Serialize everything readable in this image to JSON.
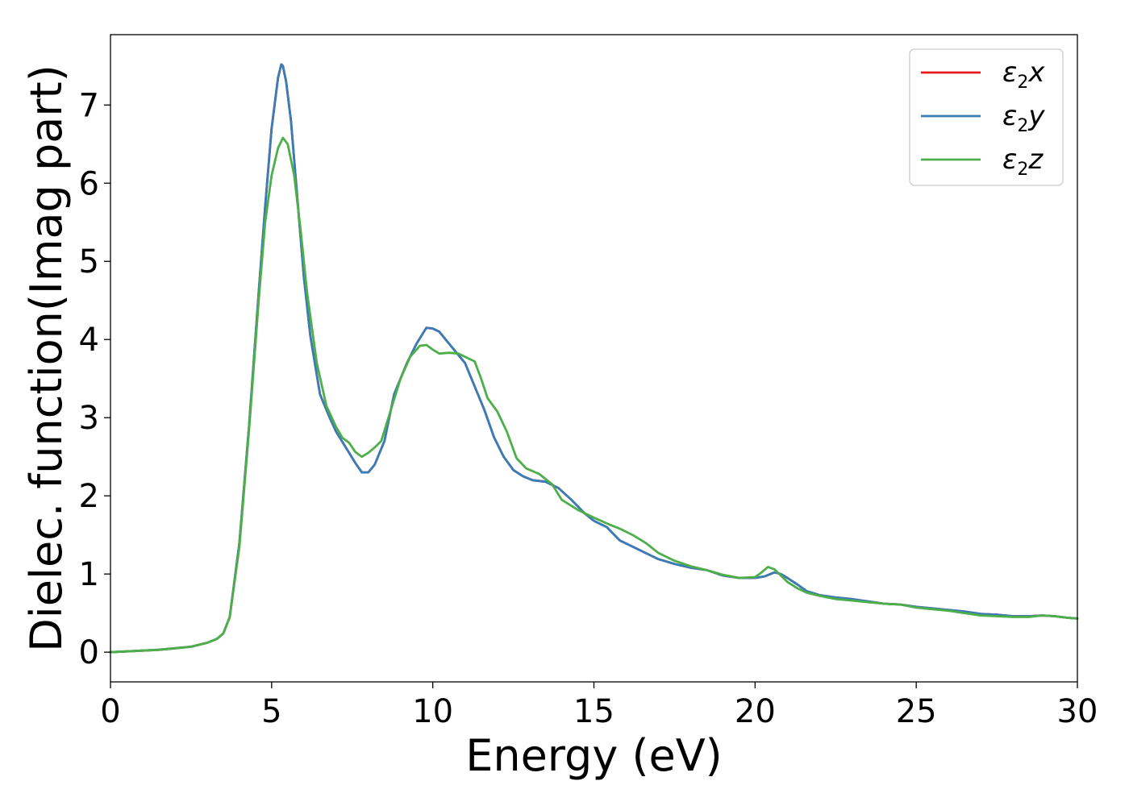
{
  "chart_data": {
    "type": "line",
    "xlabel": "Energy (eV)",
    "ylabel": "Dielec. function(Imag part)",
    "xlim": [
      0,
      30
    ],
    "ylim": [
      -0.38,
      7.9
    ],
    "xticks": [
      "0",
      "5",
      "10",
      "15",
      "20",
      "25",
      "30"
    ],
    "yticks": [
      "0",
      "1",
      "2",
      "3",
      "4",
      "5",
      "6",
      "7"
    ],
    "grid": false,
    "legend_position": "top-right",
    "series": [
      {
        "name": "ε2x",
        "legend": {
          "base": "ε",
          "sub": "2",
          "suffix": "x"
        },
        "color": "#e41a1c",
        "x": [
          0,
          0.5,
          1,
          1.5,
          2,
          2.5,
          3,
          3.3,
          3.5,
          3.7,
          4,
          4.3,
          4.6,
          4.8,
          5.0,
          5.2,
          5.3,
          5.35,
          5.45,
          5.6,
          5.8,
          6.0,
          6.2,
          6.5,
          6.8,
          7.0,
          7.3,
          7.6,
          7.8,
          8.0,
          8.2,
          8.5,
          8.8,
          9.2,
          9.5,
          9.8,
          10.0,
          10.2,
          10.5,
          10.8,
          11.0,
          11.3,
          11.6,
          11.9,
          12.2,
          12.5,
          12.8,
          13.1,
          13.5,
          13.9,
          14.3,
          14.7,
          15.0,
          15.4,
          15.8,
          16.2,
          16.6,
          17.0,
          17.5,
          18.0,
          18.5,
          19.0,
          19.5,
          20.0,
          20.3,
          20.6,
          20.8,
          21.0,
          21.3,
          21.6,
          22.0,
          22.5,
          23.0,
          23.5,
          24.0,
          24.5,
          25.0,
          25.5,
          26.0,
          26.5,
          27.0,
          27.5,
          28.0,
          28.5,
          28.9,
          29.3,
          29.7,
          30.0
        ],
        "y": [
          0.0,
          0.01,
          0.02,
          0.03,
          0.05,
          0.07,
          0.12,
          0.17,
          0.24,
          0.45,
          1.4,
          2.9,
          4.6,
          5.7,
          6.7,
          7.35,
          7.52,
          7.5,
          7.3,
          6.8,
          5.8,
          4.8,
          4.05,
          3.3,
          3.0,
          2.82,
          2.62,
          2.42,
          2.3,
          2.3,
          2.4,
          2.7,
          3.3,
          3.7,
          3.95,
          4.15,
          4.14,
          4.1,
          3.95,
          3.8,
          3.7,
          3.4,
          3.1,
          2.75,
          2.5,
          2.33,
          2.25,
          2.2,
          2.18,
          2.1,
          1.95,
          1.78,
          1.68,
          1.6,
          1.43,
          1.35,
          1.27,
          1.19,
          1.13,
          1.08,
          1.05,
          0.98,
          0.95,
          0.95,
          0.97,
          1.02,
          1.0,
          0.95,
          0.87,
          0.78,
          0.73,
          0.7,
          0.68,
          0.65,
          0.62,
          0.61,
          0.58,
          0.56,
          0.54,
          0.52,
          0.49,
          0.48,
          0.46,
          0.46,
          0.47,
          0.46,
          0.44,
          0.43
        ]
      },
      {
        "name": "ε2y",
        "legend": {
          "base": "ε",
          "sub": "2",
          "suffix": "y"
        },
        "color": "#377eb8",
        "x": [
          0,
          0.5,
          1,
          1.5,
          2,
          2.5,
          3,
          3.3,
          3.5,
          3.7,
          4,
          4.3,
          4.6,
          4.8,
          5.0,
          5.2,
          5.3,
          5.35,
          5.45,
          5.6,
          5.8,
          6.0,
          6.2,
          6.5,
          6.8,
          7.0,
          7.3,
          7.6,
          7.8,
          8.0,
          8.2,
          8.5,
          8.8,
          9.2,
          9.5,
          9.8,
          10.0,
          10.2,
          10.5,
          10.8,
          11.0,
          11.3,
          11.6,
          11.9,
          12.2,
          12.5,
          12.8,
          13.1,
          13.5,
          13.9,
          14.3,
          14.7,
          15.0,
          15.4,
          15.8,
          16.2,
          16.6,
          17.0,
          17.5,
          18.0,
          18.5,
          19.0,
          19.5,
          20.0,
          20.3,
          20.6,
          20.8,
          21.0,
          21.3,
          21.6,
          22.0,
          22.5,
          23.0,
          23.5,
          24.0,
          24.5,
          25.0,
          25.5,
          26.0,
          26.5,
          27.0,
          27.5,
          28.0,
          28.5,
          28.9,
          29.3,
          29.7,
          30.0
        ],
        "y": [
          0.0,
          0.01,
          0.02,
          0.03,
          0.05,
          0.07,
          0.12,
          0.17,
          0.24,
          0.45,
          1.4,
          2.9,
          4.6,
          5.7,
          6.7,
          7.35,
          7.52,
          7.5,
          7.3,
          6.8,
          5.8,
          4.8,
          4.05,
          3.3,
          3.0,
          2.82,
          2.62,
          2.42,
          2.3,
          2.3,
          2.4,
          2.7,
          3.3,
          3.7,
          3.95,
          4.15,
          4.14,
          4.1,
          3.95,
          3.8,
          3.7,
          3.4,
          3.1,
          2.75,
          2.5,
          2.33,
          2.25,
          2.2,
          2.18,
          2.1,
          1.95,
          1.78,
          1.68,
          1.6,
          1.43,
          1.35,
          1.27,
          1.19,
          1.13,
          1.08,
          1.05,
          0.98,
          0.95,
          0.95,
          0.97,
          1.02,
          1.0,
          0.95,
          0.87,
          0.78,
          0.73,
          0.7,
          0.68,
          0.65,
          0.62,
          0.61,
          0.58,
          0.56,
          0.54,
          0.52,
          0.49,
          0.48,
          0.46,
          0.46,
          0.47,
          0.46,
          0.44,
          0.43
        ]
      },
      {
        "name": "ε2z",
        "legend": {
          "base": "ε",
          "sub": "2",
          "suffix": "z"
        },
        "color": "#4daf4a",
        "x": [
          0,
          0.5,
          1,
          1.5,
          2,
          2.5,
          3,
          3.3,
          3.5,
          3.7,
          4,
          4.3,
          4.6,
          4.8,
          5.0,
          5.2,
          5.35,
          5.5,
          5.7,
          5.9,
          6.1,
          6.4,
          6.7,
          7.0,
          7.2,
          7.4,
          7.6,
          7.8,
          8.0,
          8.2,
          8.4,
          8.7,
          9.0,
          9.3,
          9.6,
          9.8,
          10.0,
          10.2,
          10.5,
          10.8,
          11.0,
          11.3,
          11.5,
          11.7,
          12.0,
          12.3,
          12.6,
          12.9,
          13.3,
          13.7,
          14.0,
          14.5,
          15.0,
          15.5,
          15.8,
          16.2,
          16.6,
          17.0,
          17.5,
          18.0,
          18.5,
          19.0,
          19.5,
          20.0,
          20.2,
          20.4,
          20.6,
          20.8,
          21.0,
          21.3,
          21.6,
          22.0,
          22.5,
          23.0,
          23.5,
          24.0,
          24.5,
          25.0,
          25.5,
          26.0,
          26.5,
          27.0,
          27.5,
          28.0,
          28.5,
          28.9,
          29.3,
          29.7,
          30.0
        ],
        "y": [
          0.0,
          0.01,
          0.02,
          0.03,
          0.05,
          0.07,
          0.12,
          0.17,
          0.24,
          0.45,
          1.35,
          2.85,
          4.5,
          5.5,
          6.1,
          6.45,
          6.58,
          6.5,
          6.1,
          5.4,
          4.6,
          3.7,
          3.15,
          2.88,
          2.74,
          2.68,
          2.56,
          2.5,
          2.55,
          2.62,
          2.7,
          3.1,
          3.5,
          3.78,
          3.92,
          3.93,
          3.87,
          3.82,
          3.83,
          3.82,
          3.78,
          3.72,
          3.5,
          3.25,
          3.08,
          2.82,
          2.48,
          2.35,
          2.28,
          2.15,
          1.95,
          1.82,
          1.72,
          1.63,
          1.58,
          1.5,
          1.4,
          1.27,
          1.17,
          1.1,
          1.05,
          0.99,
          0.95,
          0.96,
          1.02,
          1.09,
          1.06,
          0.98,
          0.9,
          0.82,
          0.76,
          0.72,
          0.68,
          0.66,
          0.64,
          0.62,
          0.61,
          0.57,
          0.55,
          0.53,
          0.5,
          0.47,
          0.46,
          0.45,
          0.45,
          0.47,
          0.46,
          0.44,
          0.43
        ]
      }
    ]
  }
}
